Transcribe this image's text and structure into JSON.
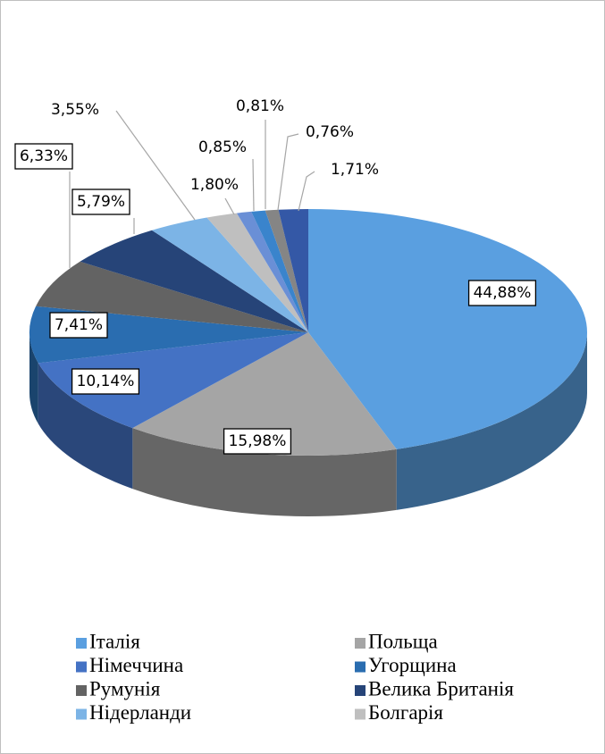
{
  "chart_data": {
    "type": "pie3d",
    "categories": [
      "Італія",
      "Польща",
      "Німеччина",
      "Угорщина",
      "Румунія",
      "Велика Британія",
      "Нідерланди",
      "Болгарія",
      null,
      null,
      null,
      null
    ],
    "values": [
      44.88,
      15.98,
      10.14,
      7.41,
      6.33,
      5.79,
      3.55,
      1.8,
      0.85,
      0.81,
      0.76,
      1.71
    ],
    "value_labels": [
      "44,88%",
      "15,98%",
      "10,14%",
      "7,41%",
      "6,33%",
      "5,79%",
      "3,55%",
      "1,80%",
      "0,85%",
      "0,81%",
      "0,76%",
      "1,71%"
    ],
    "colors": [
      "#5a9fe0",
      "#a5a5a5",
      "#4472c4",
      "#2a6db0",
      "#636363",
      "#264478",
      "#7cb4e6",
      "#bfbfbf",
      "#6a8fd6",
      "#3a84cc",
      "#858585",
      "#3458a6"
    ],
    "legend": "bottom"
  }
}
